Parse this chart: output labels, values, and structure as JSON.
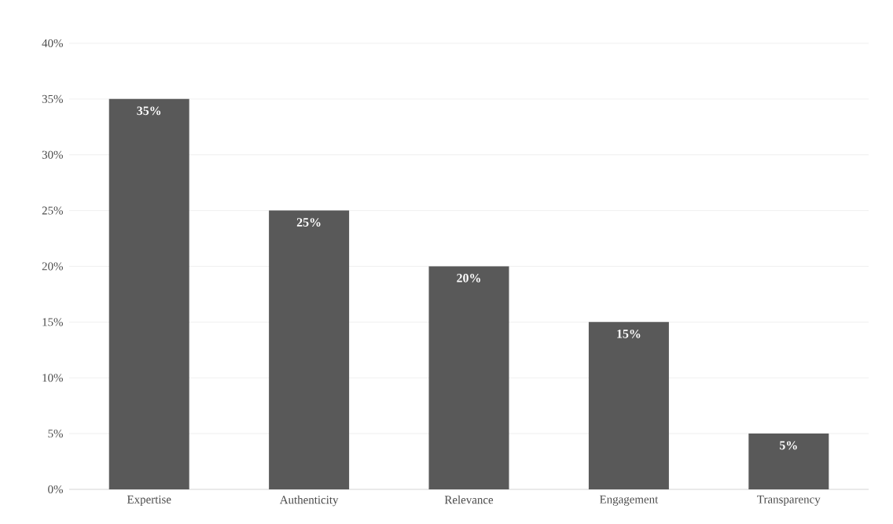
{
  "chart_data": {
    "type": "bar",
    "categories": [
      "Expertise",
      "Authenticity",
      "Relevance",
      "Engagement",
      "Transparency"
    ],
    "values": [
      35,
      25,
      20,
      15,
      5
    ],
    "value_labels": [
      "35%",
      "25%",
      "20%",
      "15%",
      "5%"
    ],
    "color": "#595959",
    "ylim": [
      0,
      40
    ],
    "yticks": [
      {
        "value": 0,
        "label": "0%"
      },
      {
        "value": 5,
        "label": "5%"
      },
      {
        "value": 10,
        "label": "10%"
      },
      {
        "value": 15,
        "label": "15%"
      },
      {
        "value": 20,
        "label": "20%"
      },
      {
        "value": 25,
        "label": "25%"
      },
      {
        "value": 30,
        "label": "30%"
      },
      {
        "value": 35,
        "label": "35%"
      },
      {
        "value": 40,
        "label": "40%"
      }
    ],
    "grid": "y"
  }
}
